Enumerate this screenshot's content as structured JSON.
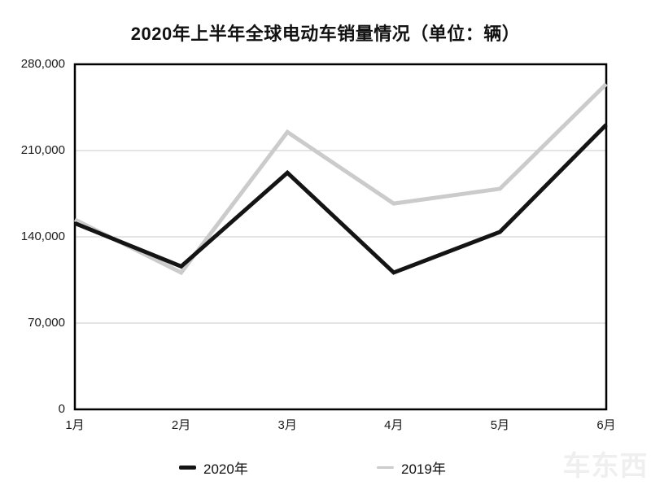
{
  "chart_data": {
    "type": "line",
    "title": "2020年上半年全球电动车销量情况（单位：辆）",
    "categories": [
      "1月",
      "2月",
      "3月",
      "4月",
      "5月",
      "6月"
    ],
    "series": [
      {
        "name": "2020年",
        "color": "#141414",
        "values": [
          151000,
          116000,
          192000,
          111000,
          144000,
          231000
        ]
      },
      {
        "name": "2019年",
        "color": "#cbcbcb",
        "values": [
          154000,
          111000,
          225000,
          167000,
          179000,
          264000
        ]
      }
    ],
    "xlabel": "",
    "ylabel": "",
    "ylim": [
      0,
      280000
    ],
    "y_ticks": [
      {
        "value": 0,
        "label": "0"
      },
      {
        "value": 70000,
        "label": "70,000"
      },
      {
        "value": 140000,
        "label": "140,000"
      },
      {
        "value": 210000,
        "label": "210,000"
      },
      {
        "value": 280000,
        "label": "280,000"
      }
    ],
    "grid": true,
    "legend_position": "bottom"
  },
  "watermark": {
    "text": "车东西"
  }
}
